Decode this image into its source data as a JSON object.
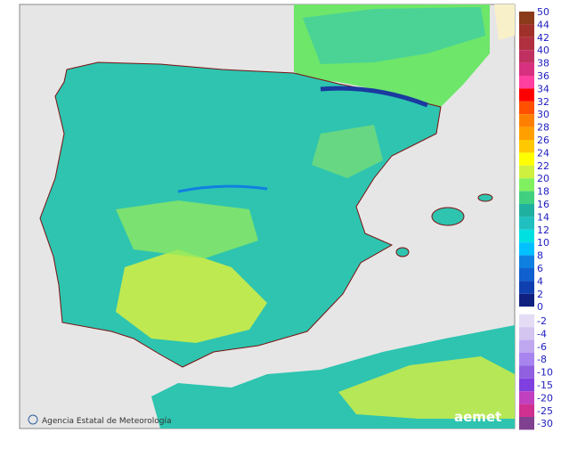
{
  "legend": {
    "positive_labels": [
      50,
      44,
      42,
      40,
      38,
      36,
      34,
      32,
      30,
      28,
      26,
      24,
      22,
      20,
      18,
      16,
      14,
      12,
      10,
      8,
      6,
      4,
      2,
      0
    ],
    "positive_colors": [
      "#8b3a1a",
      "#a0302a",
      "#b03040",
      "#c03060",
      "#d83080",
      "#ff40a0",
      "#ff0000",
      "#ff5000",
      "#ff8000",
      "#ffa000",
      "#ffc800",
      "#ffff00",
      "#d0f040",
      "#80f060",
      "#40d080",
      "#20b0a0",
      "#20c0c0",
      "#00e0e0",
      "#00c0ff",
      "#1080e0",
      "#1060d0",
      "#1040b0",
      "#102080"
    ],
    "negative_labels": [
      -2,
      -4,
      -6,
      -8,
      -10,
      -15,
      -20,
      -25,
      -30
    ],
    "negative_colors": [
      "#e4dcf4",
      "#d4c4f0",
      "#c0a8f0",
      "#a884ee",
      "#9060e0",
      "#8040e0",
      "#c040c0",
      "#d03090",
      "#804090"
    ]
  },
  "footer": {
    "credit": "Agencia Estatal de Meteorología",
    "logo": "aemet"
  }
}
